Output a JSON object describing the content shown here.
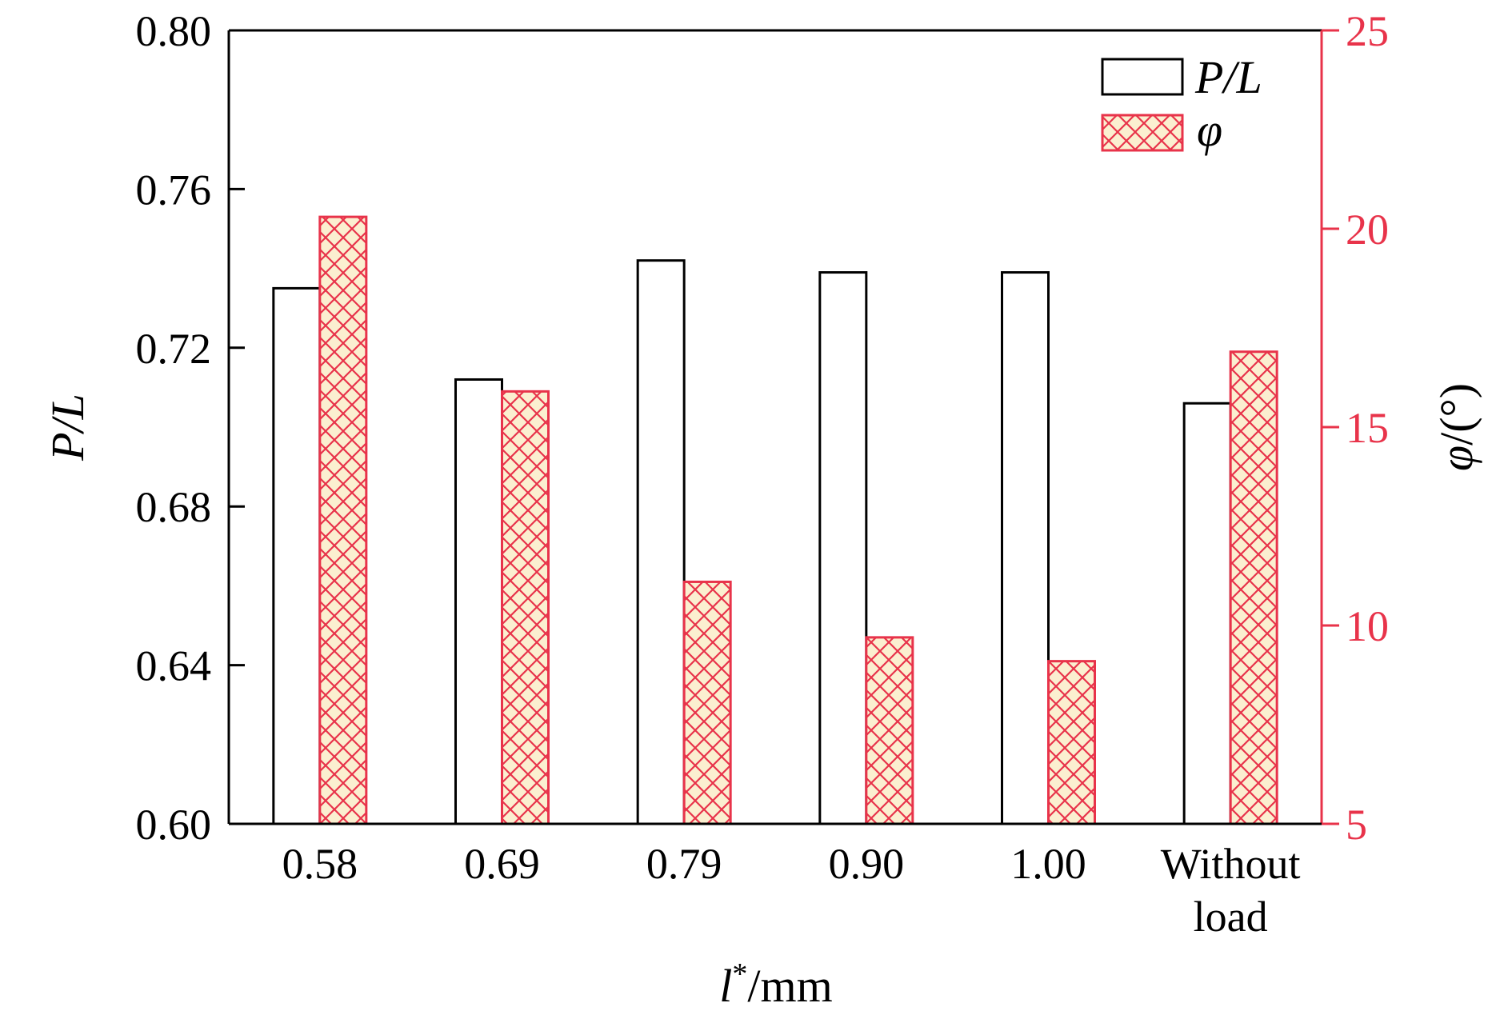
{
  "chart_data": {
    "type": "bar",
    "categories": [
      "0.58",
      "0.69",
      "0.79",
      "0.90",
      "1.00",
      "Without load"
    ],
    "category_lines": [
      [
        "0.58"
      ],
      [
        "0.69"
      ],
      [
        "0.79"
      ],
      [
        "0.90"
      ],
      [
        "1.00"
      ],
      [
        "Without",
        "load"
      ]
    ],
    "series": [
      {
        "name": "P/L",
        "axis": "left",
        "values": [
          0.735,
          0.712,
          0.742,
          0.739,
          0.739,
          0.706
        ]
      },
      {
        "name": "φ",
        "axis": "right",
        "values": [
          20.3,
          15.9,
          11.1,
          9.7,
          9.1,
          16.9
        ]
      }
    ],
    "xlabel": {
      "l": "l",
      "sup": "*",
      "unit": "/mm"
    },
    "ylabel_left": "P/L",
    "ylabel_right": {
      "symbol": "φ",
      "unit": "/(°)"
    },
    "ylim_left": [
      0.6,
      0.8
    ],
    "yticks_left": [
      "0.60",
      "0.64",
      "0.68",
      "0.72",
      "0.76",
      "0.80"
    ],
    "ylim_right": [
      5,
      25
    ],
    "yticks_right": [
      "5",
      "10",
      "15",
      "20",
      "25"
    ],
    "legend_position": "top-right",
    "grid": false,
    "colors": {
      "axis_left": "#000000",
      "axis_right": "#e8334a",
      "pl_bar_fill": "#ffffff",
      "pl_bar_stroke": "#000000",
      "phi_bar_fill": "#fbefd0",
      "phi_bar_pattern": "#e8334a"
    }
  }
}
